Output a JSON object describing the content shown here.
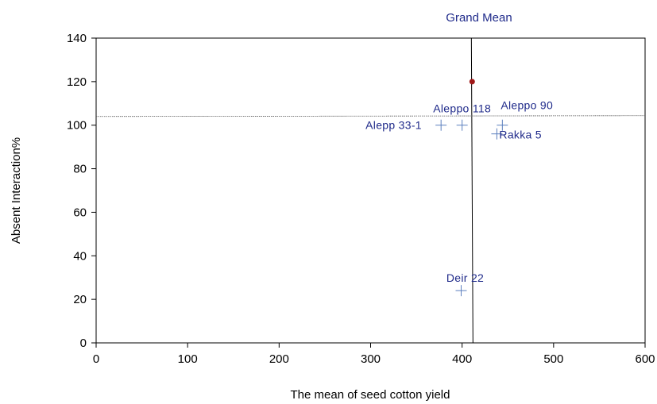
{
  "chart_data": {
    "type": "scatter",
    "xlabel": "The mean of seed cotton yield",
    "ylabel": "Absent Interaction%",
    "xlim": [
      0,
      600
    ],
    "ylim": [
      0,
      140
    ],
    "x_ticks": [
      "0",
      "100",
      "200",
      "300",
      "400",
      "500",
      "600"
    ],
    "y_ticks": [
      "0",
      "20",
      "40",
      "60",
      "80",
      "100",
      "120",
      "140"
    ],
    "grid": false,
    "points": [
      {
        "label": "Aleppo 118",
        "x": 400,
        "y": 100
      },
      {
        "label": "Alepp 33-1",
        "x": 377,
        "y": 100
      },
      {
        "label": "Aleppo 90",
        "x": 444,
        "y": 100
      },
      {
        "label": "Rakka 5",
        "x": 438,
        "y": 96
      },
      {
        "label": "Deir 22",
        "x": 399,
        "y": 24
      }
    ],
    "reference": {
      "label": "Grand Mean",
      "x": 411,
      "y": 120,
      "hline_y": 104,
      "marker_color": "#a01818"
    },
    "colors": {
      "points": "#5b7fbe",
      "labels": "#1f2a8a",
      "axes": "#000000"
    }
  }
}
